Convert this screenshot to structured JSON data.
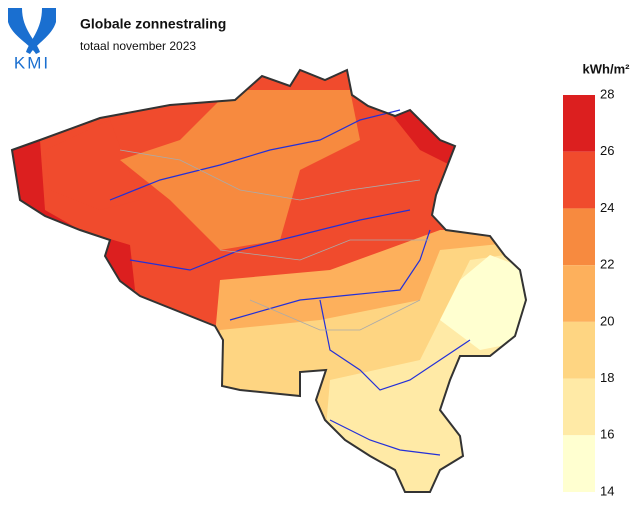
{
  "header": {
    "logo": "KMI",
    "title": "Globale zonnestraling",
    "subtitle": "totaal november 2023"
  },
  "legend": {
    "unit": "kWh/m²",
    "ticks": [
      28,
      26,
      24,
      22,
      20,
      18,
      16,
      14
    ],
    "colors": [
      "#dc1f1f",
      "#f04b2d",
      "#f78a3f",
      "#fdb05c",
      "#fed582",
      "#ffeaa6",
      "#ffffd0"
    ]
  }
}
